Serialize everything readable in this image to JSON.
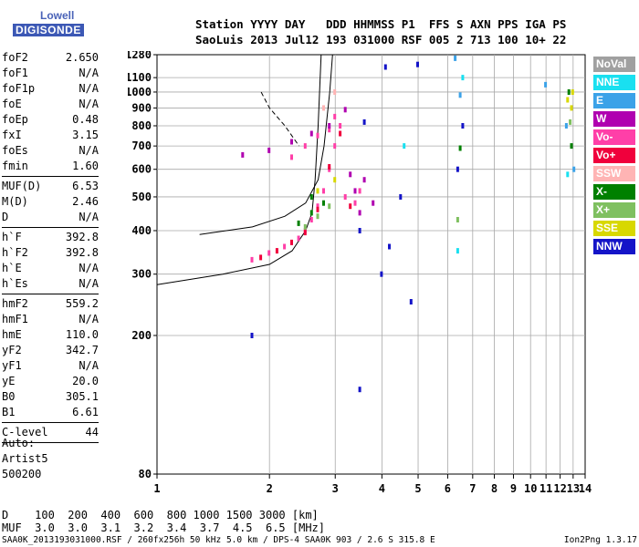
{
  "logo": {
    "line1": "Lowell",
    "line2": "DIGISONDE"
  },
  "header": {
    "line1": "Station YYYY DAY   DDD HHMMSS P1  FFS S AXN PPS IGA PS",
    "line2": "SaoLuis 2013 Jul12 193 031000 RSF 005 2 713 100 10+ 22"
  },
  "params": {
    "group1": [
      {
        "label": "foF2",
        "value": "2.650"
      },
      {
        "label": "foF1",
        "value": "N/A"
      },
      {
        "label": "foF1p",
        "value": "N/A"
      },
      {
        "label": "foE",
        "value": "N/A"
      },
      {
        "label": "foEp",
        "value": "0.48"
      },
      {
        "label": "fxI",
        "value": "3.15"
      },
      {
        "label": "foEs",
        "value": "N/A"
      },
      {
        "label": "fmin",
        "value": "1.60"
      }
    ],
    "group2": [
      {
        "label": "MUF(D)",
        "value": "6.53"
      },
      {
        "label": "M(D)",
        "value": "2.46"
      },
      {
        "label": "D",
        "value": "N/A"
      }
    ],
    "group3": [
      {
        "label": "h`F",
        "value": "392.8"
      },
      {
        "label": "h`F2",
        "value": "392.8"
      },
      {
        "label": "h`E",
        "value": "N/A"
      },
      {
        "label": "h`Es",
        "value": "N/A"
      }
    ],
    "group4": [
      {
        "label": "hmF2",
        "value": "559.2"
      },
      {
        "label": "hmF1",
        "value": "N/A"
      },
      {
        "label": "hmE",
        "value": "110.0"
      },
      {
        "label": "yF2",
        "value": "342.7"
      },
      {
        "label": "yF1",
        "value": "N/A"
      },
      {
        "label": "yE",
        "value": "20.0"
      },
      {
        "label": "B0",
        "value": "305.1"
      },
      {
        "label": "B1",
        "value": "6.61"
      }
    ],
    "group5": [
      {
        "label": "C-level",
        "value": "44"
      }
    ]
  },
  "auto": {
    "line1": "Auto:",
    "line2": "Artist5",
    "line3": "500200"
  },
  "legend": [
    {
      "label": "NoVal",
      "color": "#a0a0a0"
    },
    {
      "label": "NNE",
      "color": "#19e0f0"
    },
    {
      "label": "E",
      "color": "#3ba2e8"
    },
    {
      "label": "W",
      "color": "#b000b0"
    },
    {
      "label": "Vo-",
      "color": "#ff3fa8"
    },
    {
      "label": "Vo+",
      "color": "#f0003c"
    },
    {
      "label": "SSW",
      "color": "#ffb4b4"
    },
    {
      "label": "X-",
      "color": "#008000"
    },
    {
      "label": "X+",
      "color": "#7fc060"
    },
    {
      "label": "SSE",
      "color": "#d8d800"
    },
    {
      "label": "NNW",
      "color": "#1414c8"
    }
  ],
  "dmuf": {
    "line1": "D    100  200  400  600  800 1000 1500 3000 [km]",
    "line2": "MUF  3.0  3.0  3.1  3.2  3.4  3.7  4.5  6.5 [MHz]"
  },
  "footer": {
    "left": "SAA0K_2013193031000.RSF / 260fx256h 50 kHz 5.0 km / DPS-4 SAA0K 903 / 2.6 S 315.8 E",
    "right": "Ion2Png 1.3.17"
  },
  "chart_data": {
    "type": "scatter",
    "x_ticks": [
      "1",
      "2",
      "3",
      "4",
      "5",
      "6",
      "7",
      "8",
      "9",
      "10",
      "11",
      "12",
      "13",
      "14"
    ],
    "y_ticks": [
      "80",
      "200",
      "300",
      "400",
      "500",
      "600",
      "700",
      "800",
      "900",
      "1000",
      "1100",
      "1280"
    ],
    "xlim": [
      1,
      14
    ],
    "ylim": [
      80,
      1280
    ],
    "grid": true,
    "x_scale": "log",
    "y_scale": "log",
    "legend_position": "right",
    "series": [
      {
        "name": "Vo-",
        "color": "#ff3fa8",
        "points": [
          [
            1.8,
            330
          ],
          [
            2.0,
            345
          ],
          [
            2.2,
            360
          ],
          [
            2.4,
            380
          ],
          [
            2.5,
            400
          ],
          [
            2.6,
            430
          ],
          [
            2.7,
            470
          ],
          [
            2.8,
            520
          ],
          [
            2.9,
            600
          ],
          [
            3.0,
            700
          ],
          [
            3.1,
            800
          ],
          [
            2.3,
            650
          ],
          [
            2.5,
            700
          ],
          [
            2.7,
            750
          ],
          [
            2.9,
            780
          ],
          [
            3.0,
            850
          ],
          [
            3.2,
            500
          ],
          [
            3.4,
            480
          ],
          [
            3.5,
            520
          ]
        ]
      },
      {
        "name": "Vo+",
        "color": "#f0003c",
        "points": [
          [
            1.9,
            335
          ],
          [
            2.1,
            350
          ],
          [
            2.3,
            370
          ],
          [
            2.5,
            395
          ],
          [
            2.7,
            460
          ],
          [
            2.9,
            610
          ],
          [
            3.1,
            760
          ],
          [
            3.3,
            470
          ]
        ]
      },
      {
        "name": "W",
        "color": "#b000b0",
        "points": [
          [
            1.7,
            660
          ],
          [
            2.0,
            680
          ],
          [
            2.3,
            720
          ],
          [
            2.6,
            760
          ],
          [
            2.9,
            800
          ],
          [
            3.2,
            890
          ],
          [
            3.3,
            580
          ],
          [
            3.4,
            520
          ],
          [
            3.6,
            560
          ],
          [
            3.8,
            480
          ],
          [
            3.5,
            450
          ]
        ]
      },
      {
        "name": "X-",
        "color": "#008000",
        "points": [
          [
            2.4,
            420
          ],
          [
            2.6,
            450
          ],
          [
            2.8,
            480
          ],
          [
            2.6,
            500
          ],
          [
            6.5,
            690
          ],
          [
            12.7,
            1000
          ],
          [
            12.9,
            700
          ]
        ]
      },
      {
        "name": "X+",
        "color": "#7fc060",
        "points": [
          [
            2.5,
            410
          ],
          [
            2.7,
            440
          ],
          [
            2.9,
            470
          ],
          [
            6.4,
            430
          ],
          [
            12.8,
            820
          ]
        ]
      },
      {
        "name": "SSE",
        "color": "#d8d800",
        "points": [
          [
            2.7,
            520
          ],
          [
            3.0,
            560
          ],
          [
            12.6,
            950
          ],
          [
            13.0,
            1000
          ],
          [
            12.9,
            900
          ]
        ]
      },
      {
        "name": "NNW",
        "color": "#1414c8",
        "points": [
          [
            3.5,
            400
          ],
          [
            3.6,
            820
          ],
          [
            4.0,
            300
          ],
          [
            4.1,
            1180
          ],
          [
            4.5,
            500
          ],
          [
            4.8,
            250
          ],
          [
            6.4,
            600
          ],
          [
            6.6,
            800
          ],
          [
            1.8,
            200
          ],
          [
            3.5,
            140
          ],
          [
            4.2,
            360
          ],
          [
            5.0,
            1200
          ]
        ]
      },
      {
        "name": "E",
        "color": "#3ba2e8",
        "points": [
          [
            6.3,
            1250
          ],
          [
            6.5,
            980
          ],
          [
            11.0,
            1050
          ],
          [
            12.5,
            800
          ],
          [
            13.1,
            600
          ]
        ]
      },
      {
        "name": "NNE",
        "color": "#19e0f0",
        "points": [
          [
            6.4,
            350
          ],
          [
            6.6,
            1100
          ],
          [
            12.6,
            580
          ],
          [
            4.6,
            700
          ]
        ]
      },
      {
        "name": "SSW",
        "color": "#ffb4b4",
        "points": [
          [
            2.8,
            900
          ],
          [
            3.0,
            1000
          ]
        ]
      }
    ],
    "curves": [
      {
        "name": "profile",
        "points": [
          [
            1.0,
            280
          ],
          [
            1.5,
            300
          ],
          [
            2.0,
            320
          ],
          [
            2.3,
            350
          ],
          [
            2.5,
            400
          ],
          [
            2.6,
            450
          ],
          [
            2.65,
            560
          ],
          [
            2.7,
            800
          ],
          [
            2.75,
            1280
          ]
        ]
      },
      {
        "name": "profile2",
        "points": [
          [
            1.3,
            390
          ],
          [
            1.8,
            410
          ],
          [
            2.2,
            440
          ],
          [
            2.5,
            480
          ],
          [
            2.7,
            560
          ],
          [
            2.8,
            700
          ],
          [
            2.9,
            1000
          ],
          [
            2.95,
            1280
          ]
        ]
      },
      {
        "name": "dashed",
        "points": [
          [
            1.9,
            1000
          ],
          [
            2.0,
            900
          ],
          [
            2.2,
            800
          ],
          [
            2.4,
            700
          ]
        ]
      }
    ]
  }
}
